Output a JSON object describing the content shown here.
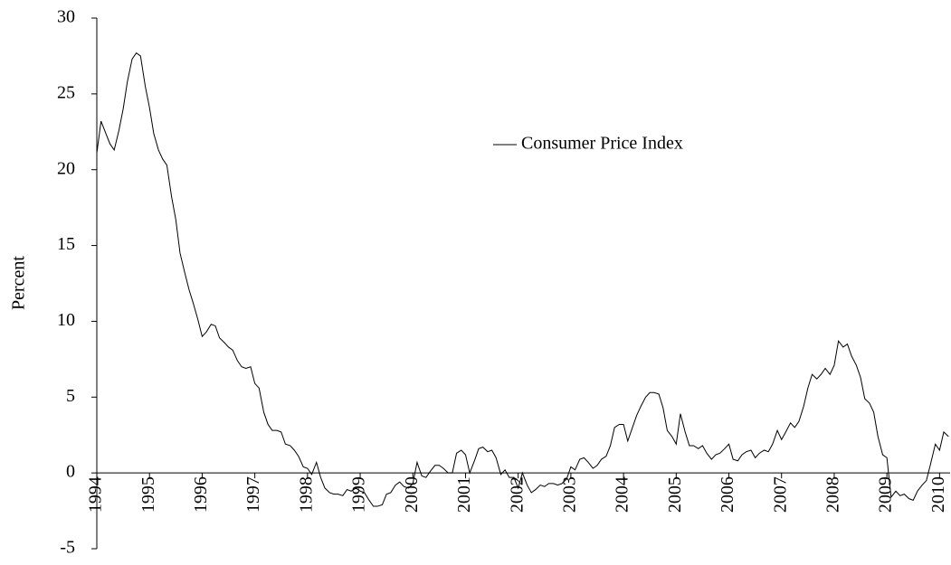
{
  "chart_data": {
    "type": "line",
    "y_label": "Percent",
    "legend": "upper center",
    "x": [
      1994,
      1994.08,
      1994.17,
      1994.25,
      1994.33,
      1994.42,
      1994.5,
      1994.58,
      1994.67,
      1994.75,
      1994.83,
      1994.92,
      1995,
      1995.08,
      1995.17,
      1995.25,
      1995.33,
      1995.42,
      1995.5,
      1995.58,
      1995.67,
      1995.75,
      1995.83,
      1995.92,
      1996,
      1996.08,
      1996.17,
      1996.25,
      1996.33,
      1996.42,
      1996.5,
      1996.58,
      1996.67,
      1996.75,
      1996.83,
      1996.92,
      1997,
      1997.08,
      1997.17,
      1997.25,
      1997.33,
      1997.42,
      1997.5,
      1997.58,
      1997.67,
      1997.75,
      1997.83,
      1997.92,
      1998,
      1998.08,
      1998.17,
      1998.25,
      1998.33,
      1998.42,
      1998.5,
      1998.58,
      1998.67,
      1998.75,
      1998.83,
      1998.92,
      1999,
      1999.08,
      1999.17,
      1999.25,
      1999.33,
      1999.42,
      1999.5,
      1999.58,
      1999.67,
      1999.75,
      1999.83,
      1999.92,
      2000,
      2000.08,
      2000.17,
      2000.25,
      2000.33,
      2000.42,
      2000.5,
      2000.58,
      2000.67,
      2000.75,
      2000.83,
      2000.92,
      2001,
      2001.08,
      2001.17,
      2001.25,
      2001.33,
      2001.42,
      2001.5,
      2001.58,
      2001.67,
      2001.75,
      2001.83,
      2001.92,
      2002,
      2002.08,
      2002.17,
      2002.25,
      2002.33,
      2002.42,
      2002.5,
      2002.58,
      2002.67,
      2002.75,
      2002.83,
      2002.92,
      2003,
      2003.08,
      2003.17,
      2003.25,
      2003.33,
      2003.42,
      2003.5,
      2003.58,
      2003.67,
      2003.75,
      2003.83,
      2003.92,
      2004,
      2004.08,
      2004.17,
      2004.25,
      2004.33,
      2004.42,
      2004.5,
      2004.58,
      2004.67,
      2004.75,
      2004.83,
      2004.92,
      2005,
      2005.08,
      2005.17,
      2005.25,
      2005.33,
      2005.42,
      2005.5,
      2005.58,
      2005.67,
      2005.75,
      2005.83,
      2005.92,
      2006,
      2006.08,
      2006.17,
      2006.25,
      2006.33,
      2006.42,
      2006.5,
      2006.58,
      2006.67,
      2006.75,
      2006.83,
      2006.92,
      2007,
      2007.08,
      2007.17,
      2007.25,
      2007.33,
      2007.42,
      2007.5,
      2007.58,
      2007.67,
      2007.75,
      2007.83,
      2007.92,
      2008,
      2008.08,
      2008.17,
      2008.25,
      2008.33,
      2008.42,
      2008.5,
      2008.58,
      2008.67,
      2008.75,
      2008.83,
      2008.92,
      2009,
      2009.08,
      2009.17,
      2009.25,
      2009.33,
      2009.42,
      2009.5,
      2009.58,
      2009.67,
      2009.75,
      2009.83,
      2009.92,
      2010,
      2010.08,
      2010.17
    ],
    "series": [
      {
        "name": "Consumer Price Index",
        "color": "#000000",
        "values": [
          21.1,
          23.2,
          22.4,
          21.7,
          21.3,
          22.6,
          24.0,
          25.8,
          27.3,
          27.7,
          27.5,
          25.5,
          24.1,
          22.4,
          21.3,
          20.7,
          20.3,
          18.2,
          16.7,
          14.5,
          13.2,
          12.1,
          11.2,
          10.1,
          9.0,
          9.3,
          9.8,
          9.7,
          8.9,
          8.6,
          8.3,
          8.1,
          7.4,
          7.0,
          6.9,
          7.0,
          5.9,
          5.6,
          4.0,
          3.2,
          2.8,
          2.8,
          2.7,
          1.9,
          1.8,
          1.5,
          1.1,
          0.4,
          0.3,
          -0.1,
          0.7,
          -0.3,
          -1.0,
          -1.3,
          -1.4,
          -1.4,
          -1.5,
          -1.1,
          -1.2,
          -1.0,
          -1.2,
          -1.3,
          -1.8,
          -2.2,
          -2.2,
          -2.1,
          -1.4,
          -1.3,
          -0.8,
          -0.6,
          -0.9,
          -1.0,
          -0.7,
          0.7,
          -0.2,
          -0.3,
          0.1,
          0.5,
          0.5,
          0.3,
          0.0,
          0.0,
          1.3,
          1.5,
          1.2,
          0.0,
          0.8,
          1.6,
          1.7,
          1.4,
          1.5,
          1.0,
          -0.1,
          0.2,
          -0.3,
          -0.3,
          -1.0,
          0.0,
          -0.8,
          -1.3,
          -1.1,
          -0.8,
          -0.9,
          -0.7,
          -0.7,
          -0.8,
          -0.7,
          -0.4,
          0.4,
          0.2,
          0.9,
          1.0,
          0.7,
          0.3,
          0.5,
          0.9,
          1.1,
          1.8,
          3.0,
          3.2,
          3.2,
          2.1,
          3.0,
          3.8,
          4.4,
          5.0,
          5.3,
          5.3,
          5.2,
          4.3,
          2.8,
          2.4,
          1.9,
          3.9,
          2.7,
          1.8,
          1.8,
          1.6,
          1.8,
          1.3,
          0.9,
          1.2,
          1.3,
          1.6,
          1.9,
          0.9,
          0.8,
          1.2,
          1.4,
          1.5,
          1.0,
          1.3,
          1.5,
          1.4,
          1.9,
          2.8,
          2.2,
          2.7,
          3.3,
          3.0,
          3.4,
          4.4,
          5.6,
          6.5,
          6.2,
          6.5,
          6.9,
          6.5,
          7.1,
          8.7,
          8.3,
          8.5,
          7.7,
          7.1,
          6.3,
          4.9,
          4.6,
          4.0,
          2.4,
          1.2,
          1.0,
          -1.6,
          -1.2,
          -1.5,
          -1.4,
          -1.7,
          -1.8,
          -1.2,
          -0.8,
          -0.5,
          0.6,
          1.9,
          1.5,
          2.7,
          2.4
        ]
      }
    ],
    "xlim": [
      1994,
      2010.2
    ],
    "xticks": [
      1994,
      1995,
      1996,
      1997,
      1998,
      1999,
      2000,
      2001,
      2002,
      2003,
      2004,
      2005,
      2006,
      2007,
      2008,
      2009,
      2010
    ],
    "ylim": [
      -5,
      30
    ],
    "yticks": [
      -5,
      0,
      5,
      10,
      15,
      20,
      25,
      30
    ],
    "grid": false
  }
}
